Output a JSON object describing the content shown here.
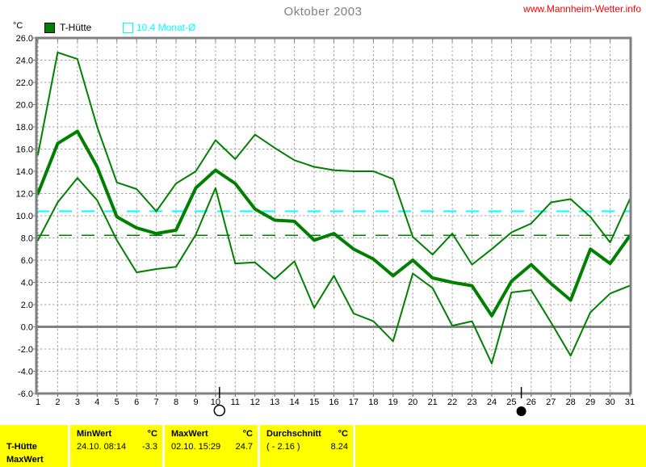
{
  "page": {
    "title": "Oktober 2003",
    "watermark": "www.Mannheim-Wetter.info",
    "unit_label": "°C"
  },
  "legend": {
    "series1_label": "T-Hütte",
    "series1_color": "#008000",
    "series2_label": "10.4 Monat-Ø",
    "series2_color": "#00ffff"
  },
  "chart_data": {
    "type": "line",
    "title": "Oktober 2003",
    "ylabel": "°C",
    "ylim": [
      -6,
      26
    ],
    "y_tick_step": 2,
    "grid": true,
    "line_color": "#008000",
    "grid_color": "#a0a0a0",
    "frame_color": "#808080",
    "x": [
      1,
      2,
      3,
      4,
      5,
      6,
      7,
      8,
      9,
      10,
      11,
      12,
      13,
      14,
      15,
      16,
      17,
      18,
      19,
      20,
      21,
      22,
      23,
      24,
      25,
      26,
      27,
      28,
      29,
      30,
      31
    ],
    "y_ticks": [
      "26.0",
      "24.0",
      "22.0",
      "20.0",
      "18.0",
      "16.0",
      "14.0",
      "12.0",
      "10.0",
      "8.0",
      "6.0",
      "4.0",
      "2.0",
      "0.0",
      "-2.0",
      "-4.0",
      "-6.0"
    ],
    "series": [
      {
        "name": "max",
        "values": [
          15.5,
          24.7,
          24.1,
          18.0,
          13.0,
          12.4,
          10.4,
          12.9,
          14.0,
          16.8,
          15.1,
          17.3,
          16.1,
          15.0,
          14.4,
          14.1,
          14.0,
          14.0,
          13.3,
          8.1,
          6.5,
          8.4,
          5.6,
          7.0,
          8.5,
          9.3,
          11.2,
          11.5,
          9.9,
          7.6,
          11.5
        ],
        "width": 2
      },
      {
        "name": "mean",
        "values": [
          12.0,
          16.5,
          17.6,
          14.4,
          9.9,
          8.9,
          8.4,
          8.7,
          12.5,
          14.1,
          12.9,
          10.6,
          9.6,
          9.5,
          7.8,
          8.4,
          7.0,
          6.1,
          4.6,
          6.0,
          4.4,
          4.0,
          3.7,
          1.0,
          4.1,
          5.6,
          3.9,
          2.4,
          7.0,
          5.7,
          8.2
        ],
        "width": 4
      },
      {
        "name": "min",
        "values": [
          7.8,
          11.2,
          13.4,
          11.4,
          7.8,
          4.9,
          5.2,
          5.4,
          8.3,
          12.5,
          5.7,
          5.8,
          4.3,
          5.9,
          1.7,
          4.6,
          1.2,
          0.5,
          -1.3,
          4.8,
          3.5,
          0.1,
          0.5,
          -3.3,
          3.1,
          3.3,
          0.4,
          -2.6,
          1.3,
          3.0,
          3.7
        ],
        "width": 2
      }
    ],
    "reference_lines": [
      {
        "label": "10.4 Monat-Ø",
        "value": 10.4,
        "color": "#00ffff",
        "style": "dashed",
        "width": 2
      },
      {
        "label": "Durchschnitt",
        "value": 8.24,
        "color": "#008000",
        "style": "dashed",
        "width": 1.5
      }
    ],
    "moon_markers": [
      {
        "day_position": 10.2,
        "phase": "full"
      },
      {
        "day_position": 25.5,
        "phase": "new"
      }
    ]
  },
  "table": {
    "row_label_line1": "T-Hütte",
    "row_label_line2": "MaxWert",
    "columns": [
      {
        "header": "MinWert",
        "unit": "°C",
        "datetime": "24.10.  08:14",
        "value": "-3.3"
      },
      {
        "header": "MaxWert",
        "unit": "°C",
        "datetime": "02.10.  15:29",
        "value": "24.7"
      },
      {
        "header": "Durchschnitt",
        "unit": "°C",
        "datetime": "( - 2.16 )",
        "value": "8.24"
      }
    ]
  }
}
